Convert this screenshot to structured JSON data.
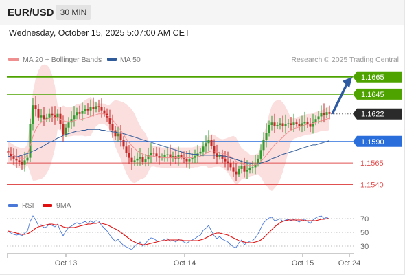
{
  "header": {
    "symbol": "EUR/USD",
    "timeframe": "30 MIN",
    "datetime": "Wednesday, October 15, 2025 5:07:00 AM CET"
  },
  "legend": {
    "ma20_label": "MA 20 + Bollinger Bands",
    "ma20_color": "#f08f8f",
    "ma50_label": "MA 50",
    "ma50_color": "#2f5b9a",
    "source": "Research © 2025 Trading Central"
  },
  "levels": [
    {
      "value": 1.1665,
      "label": "1.1665",
      "kind": "target",
      "color": "#4ea300"
    },
    {
      "value": 1.1645,
      "label": "1.1645",
      "kind": "target",
      "color": "#4ea300"
    },
    {
      "value": 1.1622,
      "label": "1.1622",
      "kind": "last",
      "color": "#2a2a2a"
    },
    {
      "value": 1.159,
      "label": "1.1590",
      "kind": "pivot",
      "color": "#2a6edc"
    },
    {
      "value": 1.1565,
      "label": "1.1565",
      "kind": "support",
      "color": "#e05050"
    },
    {
      "value": 1.154,
      "label": "1.1540",
      "kind": "support",
      "color": "#e05050"
    }
  ],
  "rsi_legend": {
    "rsi_label": "RSI",
    "rsi_color": "#4a78d8",
    "ma_label": "9MA",
    "ma_color": "#e01010"
  },
  "chart_data": [
    {
      "type": "candlestick",
      "x_ticks": [
        "Oct 13",
        "Oct 14",
        "Oct 15",
        "Oct 24"
      ],
      "ylim": [
        1.153,
        1.168
      ],
      "up_color": "#2f9e2f",
      "down_color": "#c62828",
      "close": [
        1.1577,
        1.1573,
        1.157,
        1.1568,
        1.1566,
        1.1563,
        1.1568,
        1.1571,
        1.161,
        1.1632,
        1.1628,
        1.1618,
        1.162,
        1.1616,
        1.1618,
        1.1622,
        1.162,
        1.1618,
        1.1622,
        1.161,
        1.1598,
        1.1606,
        1.1612,
        1.1616,
        1.162,
        1.1624,
        1.1622,
        1.1625,
        1.1628,
        1.1626,
        1.163,
        1.1628,
        1.1631,
        1.163,
        1.1626,
        1.1622,
        1.1618,
        1.161,
        1.1603,
        1.1596,
        1.1599,
        1.1592,
        1.1584,
        1.1577,
        1.1571,
        1.1566,
        1.1568,
        1.157,
        1.1572,
        1.1566,
        1.1569,
        1.1574,
        1.1577,
        1.1576,
        1.1573,
        1.1571,
        1.1572,
        1.1574,
        1.1575,
        1.1571,
        1.1573,
        1.157,
        1.1574,
        1.1572,
        1.157,
        1.1567,
        1.1569,
        1.1571,
        1.1573,
        1.1576,
        1.1578,
        1.1584,
        1.1588,
        1.1592,
        1.1585,
        1.1576,
        1.1572,
        1.1574,
        1.157,
        1.1567,
        1.1565,
        1.156,
        1.1555,
        1.1552,
        1.1558,
        1.1562,
        1.1555,
        1.1557,
        1.1559,
        1.156,
        1.1564,
        1.157,
        1.158,
        1.1592,
        1.16,
        1.1609,
        1.1612,
        1.1608,
        1.1609,
        1.1611,
        1.1608,
        1.161,
        1.1611,
        1.1609,
        1.1612,
        1.161,
        1.1608,
        1.1611,
        1.1613,
        1.161,
        1.1607,
        1.1612,
        1.1616,
        1.1619,
        1.1623,
        1.1621,
        1.1624,
        1.1622
      ],
      "indicators": {
        "ma20": [
          1.1578,
          1.1576,
          1.1574,
          1.1572,
          1.1571,
          1.157,
          1.157,
          1.1575,
          1.1585,
          1.1596,
          1.1604,
          1.1609,
          1.1612,
          1.1614,
          1.1616,
          1.1617,
          1.1618,
          1.1618,
          1.1618,
          1.1616,
          1.1614,
          1.1613,
          1.1613,
          1.1613,
          1.1614,
          1.1615,
          1.1615,
          1.1616,
          1.1617,
          1.1618,
          1.1619,
          1.162,
          1.1621,
          1.1622,
          1.1622,
          1.1622,
          1.162,
          1.1618,
          1.1615,
          1.1611,
          1.1607,
          1.1603,
          1.1598,
          1.1593,
          1.1589,
          1.1585,
          1.1582,
          1.1579,
          1.1577,
          1.1575,
          1.1574,
          1.1573,
          1.1573,
          1.1573,
          1.1572,
          1.1572,
          1.1571,
          1.1571,
          1.1571,
          1.1571,
          1.1571,
          1.1571,
          1.1571,
          1.1571,
          1.1571,
          1.1571,
          1.1571,
          1.1571,
          1.1572,
          1.1572,
          1.1573,
          1.1574,
          1.1576,
          1.1578,
          1.1579,
          1.1579,
          1.1578,
          1.1577,
          1.1576,
          1.1575,
          1.1574,
          1.1572,
          1.157,
          1.1567,
          1.1565,
          1.1564,
          1.1563,
          1.1562,
          1.1562,
          1.1562,
          1.1563,
          1.1564,
          1.1567,
          1.157,
          1.1574,
          1.1578,
          1.1582,
          1.1586,
          1.1589,
          1.1592,
          1.1595,
          1.1598,
          1.1601,
          1.1603,
          1.1605,
          1.1606,
          1.1607,
          1.1608,
          1.1609,
          1.161,
          1.161,
          1.1611,
          1.1612,
          1.1613,
          1.1614,
          1.1615,
          1.1616,
          1.1617
        ],
        "ma50": [
          1.1573,
          1.1572,
          1.1572,
          1.1572,
          1.1573,
          1.1574,
          1.1575,
          1.1576,
          1.1577,
          1.1579,
          1.158,
          1.1582,
          1.1583,
          1.1585,
          1.1587,
          1.1589,
          1.159,
          1.1592,
          1.1594,
          1.1595,
          1.1597,
          1.1598,
          1.1599,
          1.16,
          1.1601,
          1.1602,
          1.1602,
          1.1603,
          1.1603,
          1.1604,
          1.1604,
          1.1604,
          1.1604,
          1.1604,
          1.1603,
          1.1603,
          1.1602,
          1.1602,
          1.1601,
          1.1601,
          1.16,
          1.16,
          1.1599,
          1.1598,
          1.1597,
          1.1596,
          1.1595,
          1.1594,
          1.1593,
          1.1592,
          1.1591,
          1.159,
          1.1589,
          1.1588,
          1.1587,
          1.1586,
          1.1585,
          1.1584,
          1.1583,
          1.1582,
          1.1581,
          1.158,
          1.1579,
          1.1578,
          1.1577,
          1.1576,
          1.1576,
          1.1575,
          1.1575,
          1.1575,
          1.1574,
          1.1574,
          1.1574,
          1.1574,
          1.1574,
          1.1574,
          1.1574,
          1.1574,
          1.1573,
          1.1573,
          1.1572,
          1.1571,
          1.157,
          1.1569,
          1.1568,
          1.1567,
          1.1566,
          1.1565,
          1.1565,
          1.1564,
          1.1564,
          1.1564,
          1.1565,
          1.1566,
          1.1567,
          1.1568,
          1.157,
          1.1571,
          1.1572,
          1.1574,
          1.1575,
          1.1576,
          1.1577,
          1.1578,
          1.1579,
          1.158,
          1.1581,
          1.1582,
          1.1583,
          1.1584,
          1.1585,
          1.1586,
          1.1586,
          1.1587,
          1.1588,
          1.1589,
          1.159,
          1.1591
        ]
      },
      "forecast": {
        "from": 1.1622,
        "to": 1.1665,
        "color": "#2d5aa0"
      }
    },
    {
      "type": "line",
      "ylim": [
        20,
        80
      ],
      "y_ticks": [
        "70",
        "50",
        "30"
      ],
      "series": [
        {
          "name": "RSI",
          "values": [
            51,
            49,
            47,
            46,
            47,
            45,
            49,
            52,
            66,
            74,
            68,
            60,
            61,
            57,
            58,
            62,
            60,
            58,
            62,
            52,
            45,
            52,
            57,
            59,
            62,
            64,
            62,
            64,
            66,
            63,
            67,
            64,
            67,
            66,
            60,
            56,
            52,
            46,
            41,
            37,
            40,
            35,
            31,
            29,
            27,
            25,
            30,
            33,
            36,
            30,
            34,
            39,
            42,
            41,
            38,
            37,
            38,
            40,
            41,
            37,
            39,
            36,
            40,
            38,
            36,
            34,
            37,
            39,
            41,
            44,
            46,
            53,
            56,
            60,
            52,
            45,
            41,
            44,
            40,
            38,
            36,
            32,
            29,
            28,
            35,
            39,
            32,
            35,
            37,
            38,
            42,
            48,
            56,
            64,
            68,
            71,
            72,
            67,
            68,
            70,
            66,
            68,
            69,
            67,
            69,
            67,
            65,
            68,
            69,
            66,
            63,
            68,
            71,
            73,
            74,
            70,
            72,
            69
          ]
        },
        {
          "name": "9MA",
          "values": [
            52,
            51,
            50,
            49,
            48,
            47,
            47,
            48,
            50,
            53,
            56,
            58,
            59,
            60,
            61,
            62,
            62,
            61,
            61,
            60,
            58,
            57,
            57,
            57,
            57,
            58,
            59,
            60,
            61,
            62,
            62,
            63,
            63,
            64,
            63,
            62,
            61,
            59,
            57,
            55,
            53,
            50,
            47,
            44,
            41,
            38,
            36,
            34,
            33,
            32,
            32,
            33,
            34,
            35,
            36,
            37,
            38,
            38,
            39,
            39,
            39,
            39,
            39,
            39,
            38,
            38,
            38,
            38,
            38,
            38,
            39,
            40,
            42,
            44,
            46,
            48,
            49,
            49,
            48,
            47,
            46,
            44,
            42,
            40,
            38,
            37,
            36,
            35,
            35,
            35,
            36,
            37,
            39,
            42,
            46,
            50,
            54,
            58,
            61,
            64,
            66,
            67,
            68,
            68,
            68,
            68,
            68,
            68,
            67,
            67,
            67,
            67,
            67,
            68,
            69,
            69,
            70,
            70
          ]
        }
      ]
    }
  ]
}
